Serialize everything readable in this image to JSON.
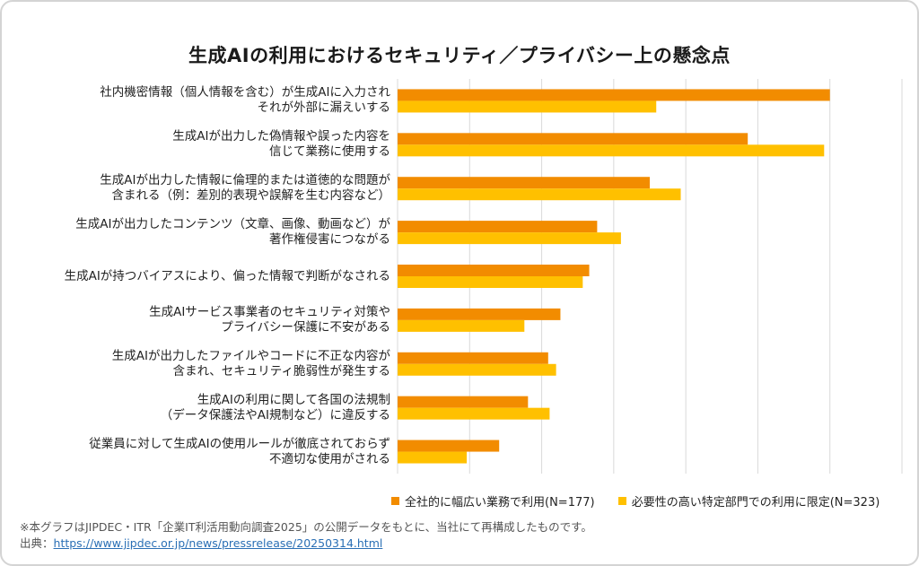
{
  "colors": {
    "series1": "#f28c00",
    "series2": "#ffc000",
    "grid": "#d9d9d9"
  },
  "chart_data": {
    "type": "bar",
    "orientation": "horizontal",
    "title": "生成AIの利用におけるセキュリティ／プライバシー上の懸念点",
    "categories": [
      [
        "社内機密情報（個人情報を含む）が生成AIに入力され",
        "それが外部に漏えいする"
      ],
      [
        "生成AIが出力した偽情報や誤った内容を",
        "信じて業務に使用する"
      ],
      [
        "生成AIが出力した情報に倫理的または道徳的な問題が",
        "含まれる（例：差別的表現や誤解を生む内容など）"
      ],
      [
        "生成AIが出力したコンテンツ（文章、画像、動画など）が",
        "著作権侵害につながる"
      ],
      [
        "生成AIが持つバイアスにより、偏った情報で判断がなされる"
      ],
      [
        "生成AIサービス事業者のセキュリティ対策や",
        "プライバシー保護に不安がある"
      ],
      [
        "生成AIが出力したファイルやコードに不正な内容が",
        "含まれ、セキュリティ脆弱性が発生する"
      ],
      [
        "生成AIの利用に関して各国の法規制",
        "（データ保護法やAI規制など）に違反する"
      ],
      [
        "従業員に対して生成AIの使用ルールが徹底されておらず",
        "不適切な使用がされる"
      ]
    ],
    "series": [
      {
        "name": "全社的に幅広い業務で利用(N=177)",
        "values": [
          60.0,
          48.6,
          35.0,
          27.7,
          26.6,
          22.6,
          20.9,
          18.1,
          14.1
        ]
      },
      {
        "name": "必要性の高い特定部門での利用に限定(N=323)",
        "values": [
          35.9,
          59.2,
          39.3,
          31.0,
          25.7,
          17.6,
          22.0,
          21.1,
          9.6
        ]
      }
    ],
    "xlim": [
      0,
      70
    ],
    "grid": true,
    "legend_position": "bottom"
  },
  "footnote": {
    "note": "※本グラフはJIPDEC・ITR「企業IT利活用動向調査2025」の公開データをもとに、当社にて再構成したものです。",
    "source_label": "出典：",
    "source_url": "https://www.jipdec.or.jp/news/pressrelease/20250314.html"
  }
}
